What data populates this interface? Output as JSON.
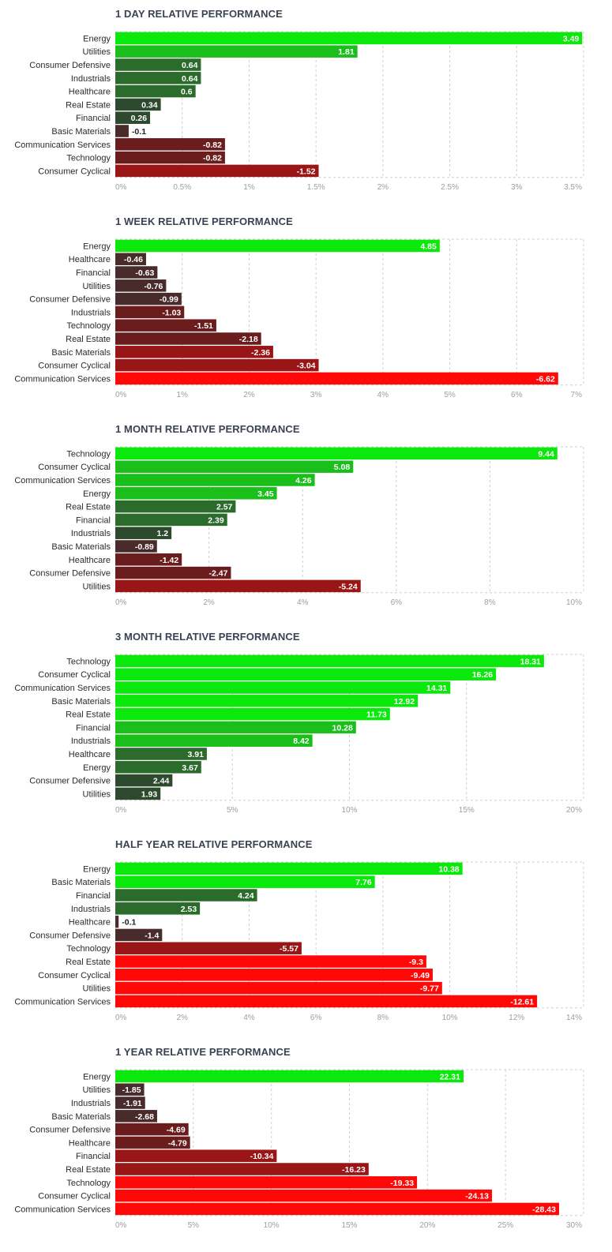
{
  "palette": {
    "pos_strong": "#0be80b",
    "pos_mid": "#1bbf1b",
    "pos_dark": "#2b6b2b",
    "pos_darkest": "#2e4a2e",
    "neg_darkest": "#4a2b2b",
    "neg_dark": "#6b1d1d",
    "neg_mid": "#9a1515",
    "neg_strong": "#ff0808",
    "grid": "#cfcfcf",
    "title": "#3b4252"
  },
  "chart_data": [
    {
      "type": "bar",
      "orientation": "horizontal",
      "title": "1 DAY RELATIVE PERFORMANCE",
      "categories": [
        "Energy",
        "Utilities",
        "Consumer Defensive",
        "Industrials",
        "Healthcare",
        "Real Estate",
        "Financial",
        "Basic Materials",
        "Communication Services",
        "Technology",
        "Consumer Cyclical"
      ],
      "values": [
        3.49,
        1.81,
        0.64,
        0.64,
        0.6,
        0.34,
        0.26,
        -0.1,
        -0.82,
        -0.82,
        -1.52
      ],
      "value_labels": [
        "3.49",
        "1.81",
        "0.64",
        "0.64",
        "0.6",
        "0.34",
        "0.26",
        "-0.1",
        "-0.82",
        "-0.82",
        "-1.52"
      ],
      "xlim": [
        0,
        3.5
      ],
      "ticks": [
        0,
        0.5,
        1,
        1.5,
        2,
        2.5,
        3,
        3.5
      ],
      "tick_labels": [
        "0%",
        "0.5%",
        "1%",
        "1.5%",
        "2%",
        "2.5%",
        "3%",
        "3.5%"
      ],
      "bar_length": "absolute value",
      "grid": true,
      "legend": "none"
    },
    {
      "type": "bar",
      "orientation": "horizontal",
      "title": "1 WEEK RELATIVE PERFORMANCE",
      "categories": [
        "Energy",
        "Healthcare",
        "Financial",
        "Utilities",
        "Consumer Defensive",
        "Industrials",
        "Technology",
        "Real Estate",
        "Basic Materials",
        "Consumer Cyclical",
        "Communication Services"
      ],
      "values": [
        4.85,
        -0.46,
        -0.63,
        -0.76,
        -0.99,
        -1.03,
        -1.51,
        -2.18,
        -2.36,
        -3.04,
        -6.62
      ],
      "value_labels": [
        "4.85",
        "-0.46",
        "-0.63",
        "-0.76",
        "-0.99",
        "-1.03",
        "-1.51",
        "-2.18",
        "-2.36",
        "-3.04",
        "-6.62"
      ],
      "xlim": [
        0,
        7
      ],
      "ticks": [
        0,
        1,
        2,
        3,
        4,
        5,
        6,
        7
      ],
      "tick_labels": [
        "0%",
        "1%",
        "2%",
        "3%",
        "4%",
        "5%",
        "6%",
        "7%"
      ],
      "bar_length": "absolute value",
      "grid": true,
      "legend": "none"
    },
    {
      "type": "bar",
      "orientation": "horizontal",
      "title": "1 MONTH RELATIVE PERFORMANCE",
      "categories": [
        "Technology",
        "Consumer Cyclical",
        "Communication Services",
        "Energy",
        "Real Estate",
        "Financial",
        "Industrials",
        "Basic Materials",
        "Healthcare",
        "Consumer Defensive",
        "Utilities"
      ],
      "values": [
        9.44,
        5.08,
        4.26,
        3.45,
        2.57,
        2.39,
        1.2,
        -0.89,
        -1.42,
        -2.47,
        -5.24
      ],
      "value_labels": [
        "9.44",
        "5.08",
        "4.26",
        "3.45",
        "2.57",
        "2.39",
        "1.2",
        "-0.89",
        "-1.42",
        "-2.47",
        "-5.24"
      ],
      "xlim": [
        0,
        10
      ],
      "ticks": [
        0,
        2,
        4,
        6,
        8,
        10
      ],
      "tick_labels": [
        "0%",
        "2%",
        "4%",
        "6%",
        "8%",
        "10%"
      ],
      "bar_length": "absolute value",
      "grid": true,
      "legend": "none"
    },
    {
      "type": "bar",
      "orientation": "horizontal",
      "title": "3 MONTH RELATIVE PERFORMANCE",
      "categories": [
        "Technology",
        "Consumer Cyclical",
        "Communication Services",
        "Basic Materials",
        "Real Estate",
        "Financial",
        "Industrials",
        "Healthcare",
        "Energy",
        "Consumer Defensive",
        "Utilities"
      ],
      "values": [
        18.31,
        16.26,
        14.31,
        12.92,
        11.73,
        10.28,
        8.42,
        3.91,
        3.67,
        2.44,
        1.93
      ],
      "value_labels": [
        "18.31",
        "16.26",
        "14.31",
        "12.92",
        "11.73",
        "10.28",
        "8.42",
        "3.91",
        "3.67",
        "2.44",
        "1.93"
      ],
      "xlim": [
        0,
        20
      ],
      "ticks": [
        0,
        5,
        10,
        15,
        20
      ],
      "tick_labels": [
        "0%",
        "5%",
        "10%",
        "15%",
        "20%"
      ],
      "bar_length": "absolute value",
      "grid": true,
      "legend": "none"
    },
    {
      "type": "bar",
      "orientation": "horizontal",
      "title": "HALF YEAR RELATIVE PERFORMANCE",
      "categories": [
        "Energy",
        "Basic Materials",
        "Financial",
        "Industrials",
        "Healthcare",
        "Consumer Defensive",
        "Technology",
        "Real Estate",
        "Consumer Cyclical",
        "Utilities",
        "Communication Services"
      ],
      "values": [
        10.38,
        7.76,
        4.24,
        2.53,
        -0.1,
        -1.4,
        -5.57,
        -9.3,
        -9.49,
        -9.77,
        -12.61
      ],
      "value_labels": [
        "10.38",
        "7.76",
        "4.24",
        "2.53",
        "-0.1",
        "-1.4",
        "-5.57",
        "-9.3",
        "-9.49",
        "-9.77",
        "-12.61"
      ],
      "xlim": [
        0,
        14
      ],
      "ticks": [
        0,
        2,
        4,
        6,
        8,
        10,
        12,
        14
      ],
      "tick_labels": [
        "0%",
        "2%",
        "4%",
        "6%",
        "8%",
        "10%",
        "12%",
        "14%"
      ],
      "bar_length": "absolute value",
      "grid": true,
      "legend": "none"
    },
    {
      "type": "bar",
      "orientation": "horizontal",
      "title": "1 YEAR RELATIVE PERFORMANCE",
      "categories": [
        "Energy",
        "Utilities",
        "Industrials",
        "Basic Materials",
        "Consumer Defensive",
        "Healthcare",
        "Financial",
        "Real Estate",
        "Technology",
        "Consumer Cyclical",
        "Communication Services"
      ],
      "values": [
        22.31,
        -1.85,
        -1.91,
        -2.68,
        -4.69,
        -4.79,
        -10.34,
        -16.23,
        -19.33,
        -24.13,
        -28.43
      ],
      "value_labels": [
        "22.31",
        "-1.85",
        "-1.91",
        "-2.68",
        "-4.69",
        "-4.79",
        "-10.34",
        "-16.23",
        "-19.33",
        "-24.13",
        "-28.43"
      ],
      "xlim": [
        0,
        30
      ],
      "ticks": [
        0,
        5,
        10,
        15,
        20,
        25,
        30
      ],
      "tick_labels": [
        "0%",
        "5%",
        "10%",
        "15%",
        "20%",
        "25%",
        "30%"
      ],
      "bar_length": "absolute value",
      "grid": true,
      "legend": "none"
    }
  ]
}
